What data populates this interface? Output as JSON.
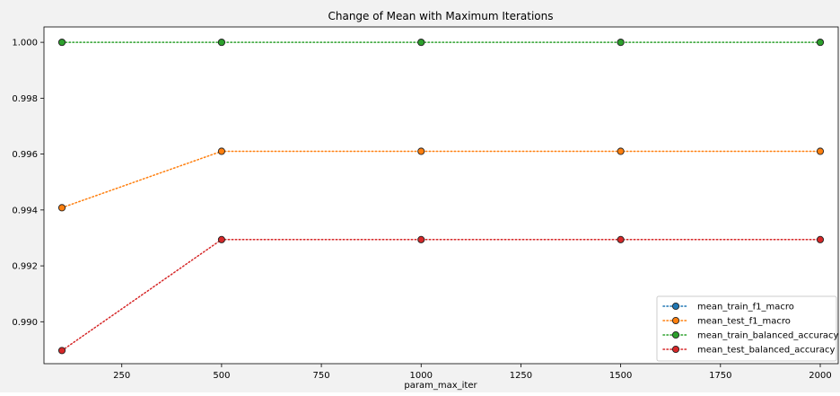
{
  "chart_data": {
    "type": "line",
    "title": "Change of Mean with Maximum Iterations",
    "xlabel": "param_max_iter",
    "ylabel": "",
    "x": [
      100,
      500,
      1000,
      1500,
      2000
    ],
    "xlim": [
      55,
      2045
    ],
    "ylim": [
      0.9885,
      1.00055
    ],
    "xticks": [
      250,
      500,
      750,
      1000,
      1250,
      1500,
      1750,
      2000
    ],
    "xtick_labels": [
      "250",
      "500",
      "750",
      "1000",
      "1250",
      "1500",
      "1750",
      "2000"
    ],
    "yticks": [
      0.99,
      0.992,
      0.994,
      0.996,
      0.998,
      1.0
    ],
    "ytick_labels": [
      "0.990",
      "0.992",
      "0.994",
      "0.996",
      "0.998",
      "1.000"
    ],
    "grid": false,
    "legend_position": "bottom-right",
    "series": [
      {
        "name": "mean_train_f1_macro",
        "values": [
          1.0,
          1.0,
          1.0,
          1.0,
          1.0
        ],
        "color": "#1f77b4",
        "visible_line": false
      },
      {
        "name": "mean_test_f1_macro",
        "values": [
          0.99408,
          0.9961,
          0.9961,
          0.9961,
          0.9961
        ],
        "color": "#ff7f0e"
      },
      {
        "name": "mean_train_balanced_accuracy",
        "values": [
          1.0,
          1.0,
          1.0,
          1.0,
          1.0
        ],
        "color": "#2ca02c"
      },
      {
        "name": "mean_test_balanced_accuracy",
        "values": [
          0.98897,
          0.99294,
          0.99294,
          0.99294,
          0.99294
        ],
        "color": "#d62728"
      }
    ]
  }
}
